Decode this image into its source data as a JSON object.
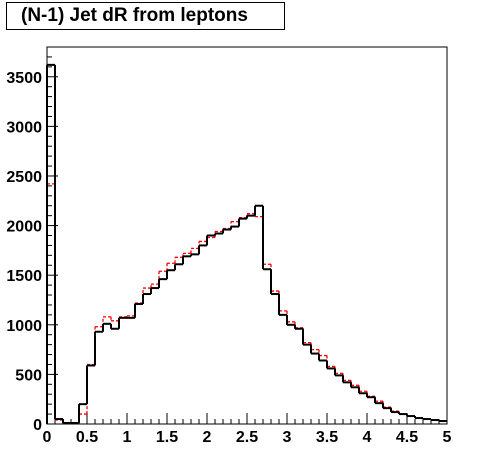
{
  "title": "(N-1) Jet dR from leptons",
  "chart_data": {
    "type": "histogram",
    "title": "(N-1) Jet dR from leptons",
    "xlabel": "",
    "ylabel": "",
    "xlim": [
      0,
      5
    ],
    "ylim": [
      0,
      3800
    ],
    "grid": false,
    "x_ticks": [
      "0",
      "0.5",
      "1",
      "1.5",
      "2",
      "2.5",
      "3",
      "3.5",
      "4",
      "4.5",
      "5"
    ],
    "y_ticks": [
      "0",
      "500",
      "1000",
      "1500",
      "2000",
      "2500",
      "3000",
      "3500"
    ],
    "bin_edges": [
      0,
      0.1,
      0.2,
      0.3,
      0.4,
      0.5,
      0.6,
      0.7,
      0.8,
      0.9,
      1.0,
      1.1,
      1.2,
      1.3,
      1.4,
      1.5,
      1.6,
      1.7,
      1.8,
      1.9,
      2.0,
      2.1,
      2.2,
      2.3,
      2.4,
      2.5,
      2.6,
      2.7,
      2.8,
      2.9,
      3.0,
      3.1,
      3.2,
      3.3,
      3.4,
      3.5,
      3.6,
      3.7,
      3.8,
      3.9,
      4.0,
      4.1,
      4.2,
      4.3,
      4.4,
      4.5,
      4.6,
      4.7,
      4.8,
      4.9,
      5.0
    ],
    "series": [
      {
        "color": "#000000",
        "style": "solid",
        "values": [
          3620,
          50,
          10,
          10,
          200,
          590,
          930,
          1010,
          960,
          1070,
          1070,
          1210,
          1310,
          1370,
          1460,
          1550,
          1610,
          1690,
          1710,
          1800,
          1900,
          1920,
          1960,
          1990,
          2070,
          2100,
          2200,
          1560,
          1310,
          1100,
          1000,
          960,
          800,
          710,
          640,
          560,
          490,
          420,
          370,
          310,
          270,
          210,
          160,
          120,
          100,
          80,
          60,
          50,
          40,
          30
        ]
      },
      {
        "color": "#ff0000",
        "style": "dashed",
        "values": [
          2420,
          40,
          10,
          10,
          100,
          600,
          980,
          1080,
          1040,
          1080,
          1090,
          1220,
          1370,
          1410,
          1540,
          1620,
          1680,
          1720,
          1770,
          1840,
          1880,
          1940,
          1970,
          2040,
          2080,
          2120,
          2090,
          1610,
          1340,
          1140,
          1030,
          970,
          820,
          750,
          690,
          580,
          510,
          440,
          390,
          330,
          280,
          230,
          170,
          130,
          100,
          80,
          60,
          50,
          40,
          30
        ]
      }
    ]
  }
}
